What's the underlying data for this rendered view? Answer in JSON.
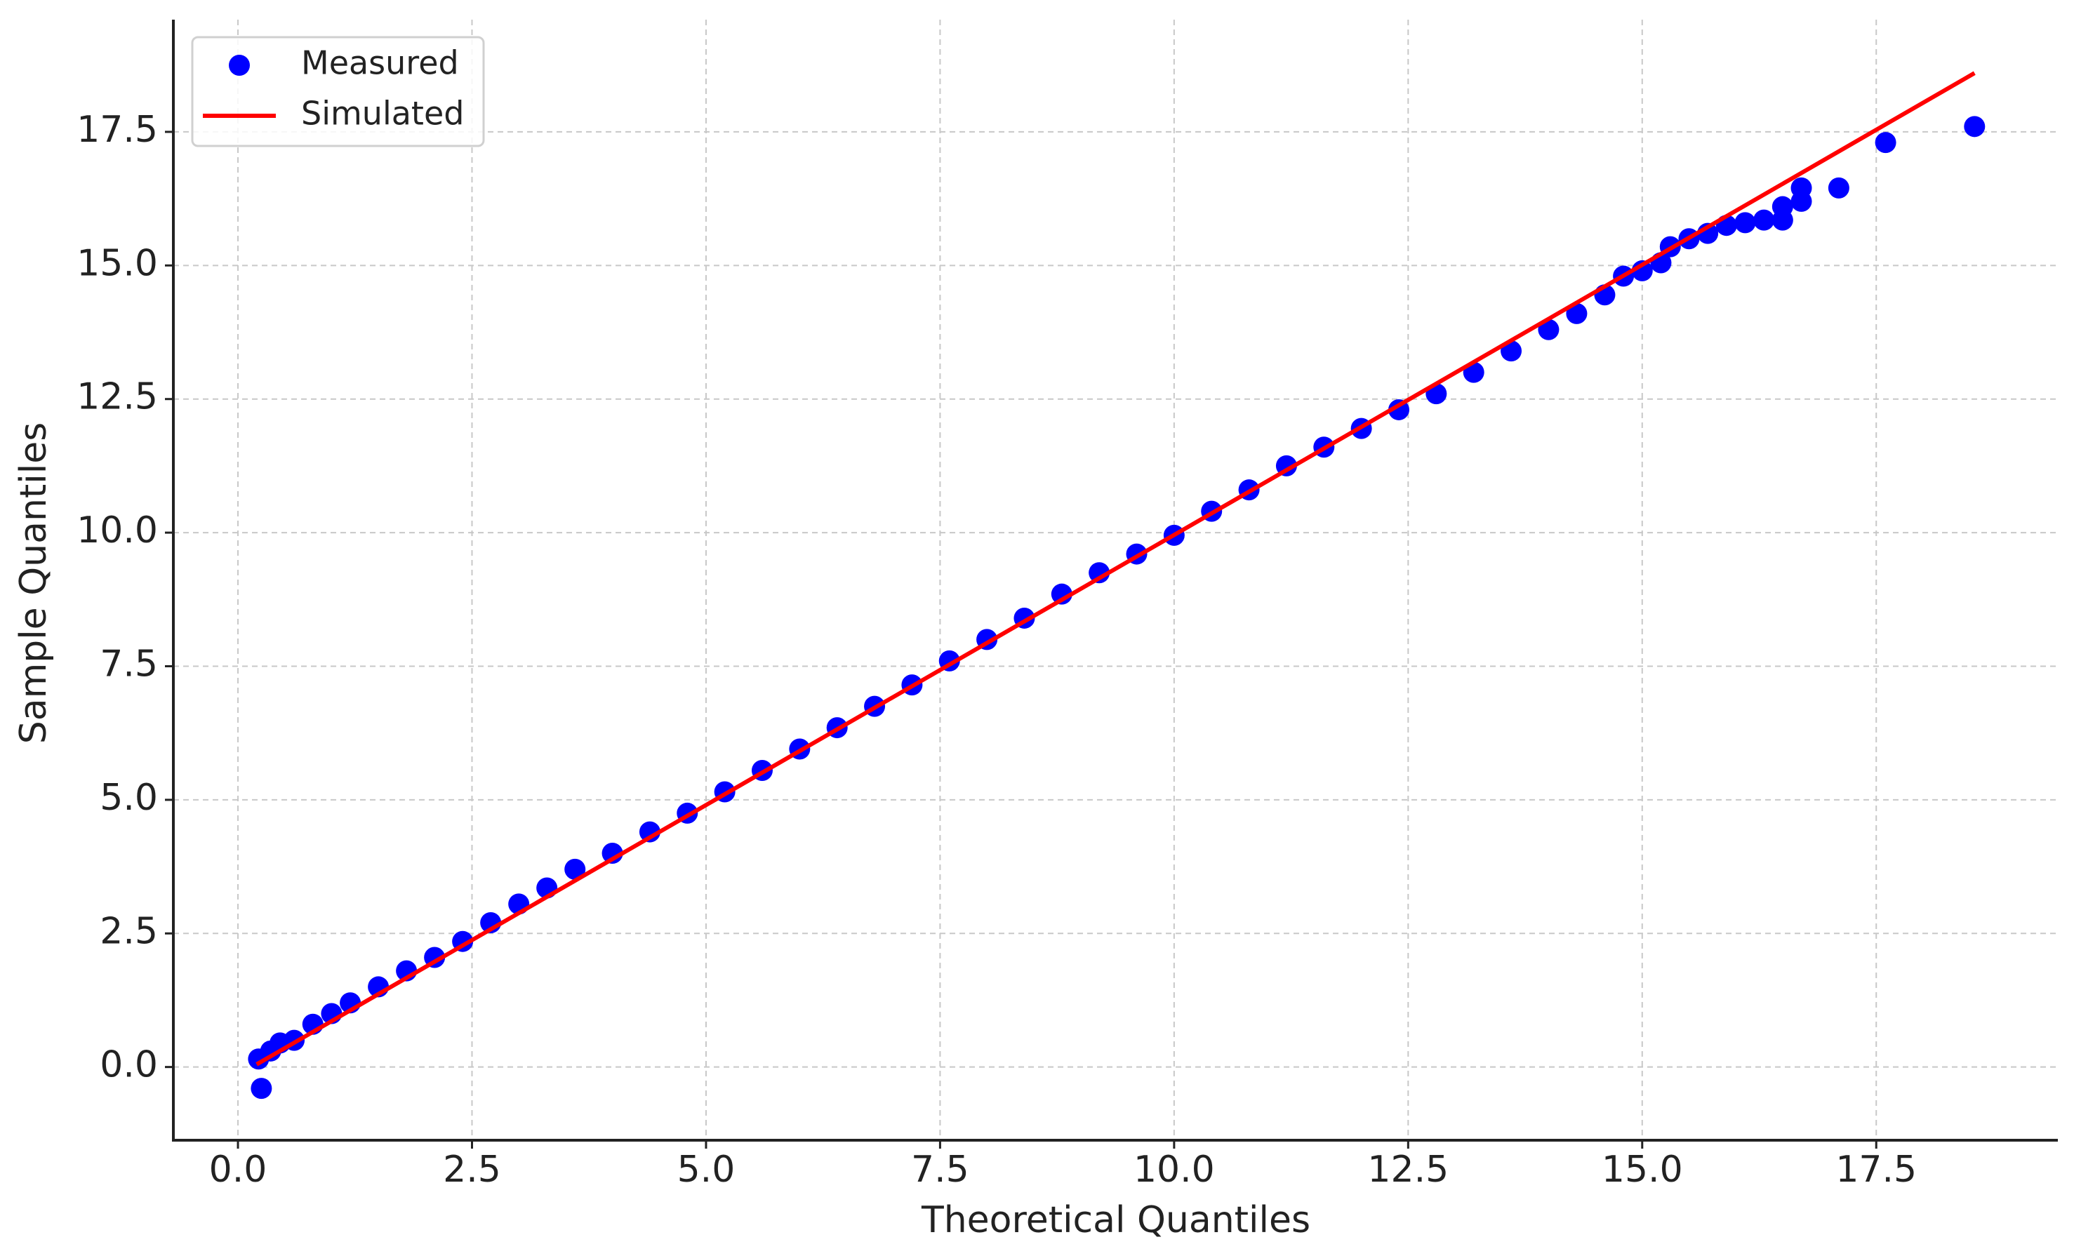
{
  "chart_data": {
    "type": "scatter",
    "xlabel": "Theoretical Quantiles",
    "ylabel": "Sample Quantiles",
    "xlim": [
      -0.69,
      19.44
    ],
    "ylim": [
      -1.37,
      19.6
    ],
    "xticks": [
      {
        "value": 0,
        "label": "0.0"
      },
      2.5,
      {
        "value": 5,
        "label": "5.0"
      },
      7.5,
      {
        "value": 10,
        "label": "10.0"
      },
      12.5,
      {
        "value": 15,
        "label": "15.0"
      },
      17.5
    ],
    "yticks": [
      {
        "value": 0,
        "label": "0.0"
      },
      2.5,
      {
        "value": 5,
        "label": "5.0"
      },
      7.5,
      {
        "value": 10,
        "label": "10.0"
      },
      12.5,
      {
        "value": 15,
        "label": "15.0"
      },
      17.5
    ],
    "grid": true,
    "legend": "upper left",
    "series": [
      {
        "name": "Measured",
        "type": "scatter",
        "color": "#0000ff",
        "x": [
          0.22,
          0.25,
          0.35,
          0.45,
          0.6,
          0.8,
          1.0,
          1.2,
          1.5,
          1.8,
          2.1,
          2.4,
          2.7,
          3.0,
          3.3,
          3.6,
          4.0,
          4.4,
          4.8,
          5.2,
          5.6,
          6.0,
          6.4,
          6.8,
          7.2,
          7.6,
          8.0,
          8.4,
          8.8,
          9.2,
          9.6,
          10.0,
          10.4,
          10.8,
          11.2,
          11.6,
          12.0,
          12.4,
          12.8,
          13.2,
          13.6,
          14.0,
          14.3,
          14.6,
          14.8,
          15.0,
          15.2,
          15.3,
          15.5,
          15.7,
          15.9,
          16.1,
          16.3,
          16.5,
          16.5,
          16.7,
          16.7,
          17.1,
          17.6,
          18.55
        ],
        "values": [
          0.15,
          -0.4,
          0.3,
          0.45,
          0.5,
          0.8,
          1.0,
          1.2,
          1.5,
          1.8,
          2.05,
          2.35,
          2.7,
          3.05,
          3.35,
          3.7,
          4.0,
          4.4,
          4.75,
          5.15,
          5.55,
          5.95,
          6.35,
          6.75,
          7.15,
          7.6,
          8.0,
          8.4,
          8.85,
          9.25,
          9.6,
          9.95,
          10.4,
          10.8,
          11.25,
          11.6,
          11.95,
          12.3,
          12.6,
          13.0,
          13.4,
          13.8,
          14.1,
          14.45,
          14.8,
          14.9,
          15.05,
          15.35,
          15.5,
          15.6,
          15.75,
          15.8,
          15.85,
          15.85,
          16.1,
          16.2,
          16.45,
          16.45,
          17.3,
          17.6
        ]
      },
      {
        "name": "Simulated",
        "type": "line",
        "color": "#ff0000",
        "x": [
          0.2,
          18.55
        ],
        "values": [
          0.05,
          18.6
        ]
      }
    ]
  }
}
